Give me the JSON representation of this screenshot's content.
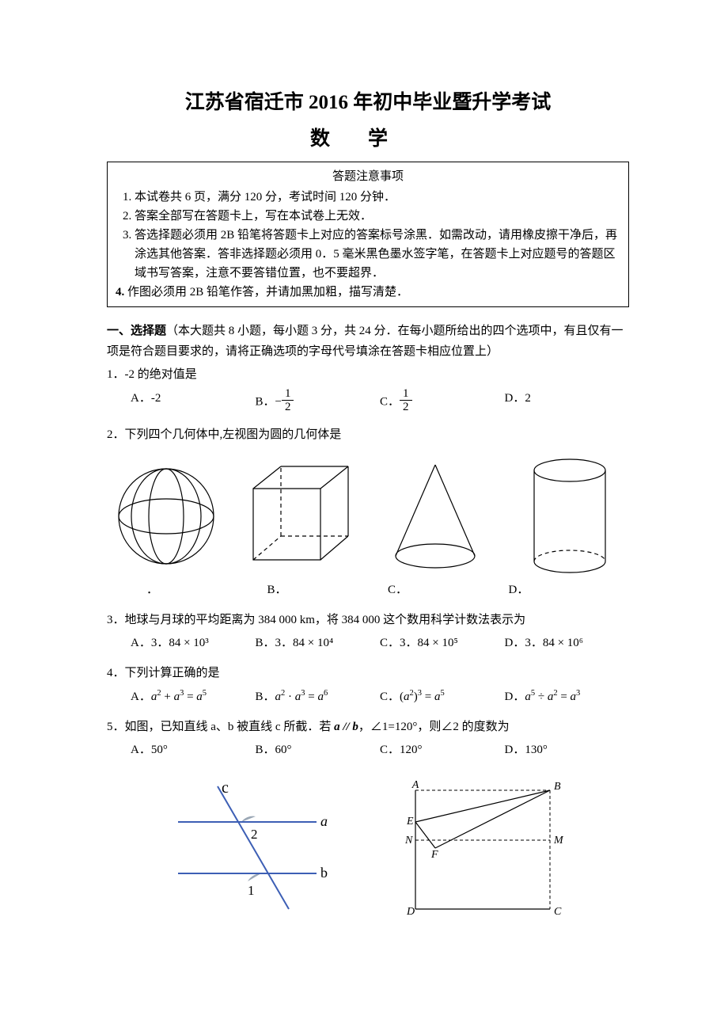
{
  "title": {
    "main": "江苏省宿迁市 2016 年初中毕业暨升学考试",
    "sub": "数学"
  },
  "instructions": {
    "heading": "答题注意事项",
    "items": [
      "本试卷共 6 页，满分 120 分，考试时间 120 分钟．",
      "答案全部写在答题卡上，写在本试卷上无效．",
      "答选择题必须用 2B 铅笔将答题卡上对应的答案标号涂黑．如需改动，请用橡皮擦干净后，再涂选其他答案．答非选择题必须用 0．5 毫米黑色墨水签字笔，在答题卡上对应题号的答题区域书写答案，注意不要答错位置，也不要超界．",
      "作图必须用 2B 铅笔作答，并请加黑加粗，描写清楚．"
    ]
  },
  "section": {
    "head_bold": "一、选择题",
    "head_rest": "（本大题共 8 小题，每小题 3 分，共 24 分．在每小题所给出的四个选项中，有且仅有一项是符合题目要求的，请将正确选项的字母代号填涂在答题卡相应位置上）"
  },
  "q1": {
    "stem": "1．-2 的绝对值是",
    "A": "A．-2",
    "B_pre": "B．−",
    "C_pre": "C．",
    "D": "D．2",
    "frac_num": "1",
    "frac_den": "2"
  },
  "q2": {
    "stem": "2．下列四个几何体中,左视图为圆的几何体是",
    "labels": {
      "A": "．",
      "B": "B．",
      "C": "C．",
      "D": "D．"
    },
    "shapes": {
      "sphere_color": "#000000",
      "cube_color": "#000000",
      "cone_color": "#000000",
      "cylinder_color": "#000000",
      "stroke_width": 1.2
    }
  },
  "q3": {
    "stem": "3．地球与月球的平均距离为 384 000 km，将 384 000 这个数用科学计数法表示为",
    "A": "A．3．84 × 10³",
    "B": "B．3．84 × 10⁴",
    "C": "C．3．84 × 10⁵",
    "D": "D．3．84 × 10⁶"
  },
  "q4": {
    "stem": "4．下列计算正确的是",
    "A_html": "A．<span class='exp'>a</span><sup>2</sup> + <span class='exp'>a</span><sup>3</sup> = <span class='exp'>a</span><sup>5</sup>",
    "B_html": "B．<span class='exp'>a</span><sup>2</sup> · <span class='exp'>a</span><sup>3</sup> = <span class='exp'>a</span><sup>6</sup>",
    "C_html": "C．(<span class='exp'>a</span><sup>2</sup>)<sup>3</sup> = <span class='exp'>a</span><sup>5</sup>",
    "D_html": "D．<span class='exp'>a</span><sup>5</sup> ÷ <span class='exp'>a</span><sup>2</sup> = <span class='exp'>a</span><sup>3</sup>"
  },
  "q5": {
    "stem1": "5．如图，已知直线 a、b 被直线 c 所截．若 ",
    "stem2": "a // b",
    "stem3": "，∠1=120°，则∠2 的度数为",
    "A": "A．50°",
    "B": "B．60°",
    "C": "C．120°",
    "D": "D．130°"
  },
  "fig5": {
    "line_color": "#3d5fb5",
    "angle_fill": "#9aa7b5",
    "text_color": "#000000",
    "labels": {
      "c": "c",
      "a": "a",
      "b": "b",
      "one": "1",
      "two": "2"
    }
  },
  "fig_sq": {
    "stroke": "#000000",
    "labels": {
      "A": "A",
      "B": "B",
      "C": "C",
      "D": "D",
      "E": "E",
      "F": "F",
      "N": "N",
      "M": "M"
    }
  }
}
